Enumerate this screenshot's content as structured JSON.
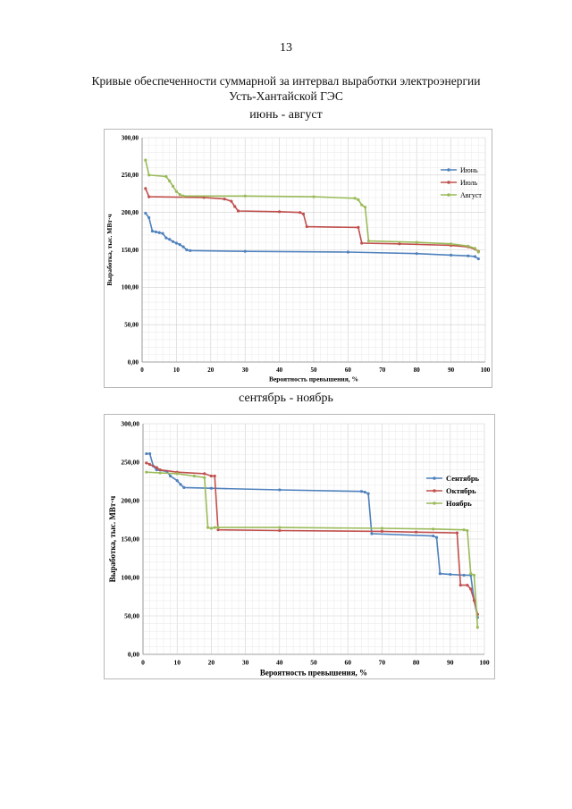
{
  "page_number": "13",
  "title_line1": "Кривые обеспеченности суммарной за интервал выработки электроэнергии",
  "title_line2": "Усть-Хантайской ГЭС",
  "section1": "июнь - август",
  "section2": "сентябрь - ноябрь",
  "chart_data": [
    {
      "type": "line",
      "xlabel": "Вероятность превышения, %",
      "ylabel": "Выработка, тыс. МВт·ч",
      "xlim": [
        0,
        100
      ],
      "ylim": [
        0,
        300
      ],
      "xticks": [
        0,
        10,
        20,
        30,
        40,
        50,
        60,
        70,
        80,
        90,
        100
      ],
      "yticks": [
        "0,00",
        "50,00",
        "100,00",
        "150,00",
        "200,00",
        "250,00",
        "300,00"
      ],
      "grid": true,
      "legend": "top-right",
      "series": [
        {
          "name": "Июнь",
          "color": "#4f81bd",
          "points": [
            [
              1,
              199
            ],
            [
              2,
              193
            ],
            [
              3,
              175
            ],
            [
              4,
              174
            ],
            [
              5,
              173
            ],
            [
              6,
              172
            ],
            [
              7,
              166
            ],
            [
              8,
              164
            ],
            [
              9,
              161
            ],
            [
              10,
              159
            ],
            [
              11,
              157
            ],
            [
              12,
              154
            ],
            [
              13,
              150
            ],
            [
              14,
              149
            ],
            [
              30,
              148
            ],
            [
              60,
              147
            ],
            [
              80,
              145
            ],
            [
              90,
              143
            ],
            [
              95,
              142
            ],
            [
              97,
              141
            ],
            [
              98,
              138
            ]
          ]
        },
        {
          "name": "Июль",
          "color": "#c0504d",
          "points": [
            [
              1,
              232
            ],
            [
              2,
              221
            ],
            [
              18,
              220
            ],
            [
              24,
              218
            ],
            [
              26,
              215
            ],
            [
              27,
              208
            ],
            [
              28,
              202
            ],
            [
              40,
              201
            ],
            [
              46,
              200
            ],
            [
              47,
              198
            ],
            [
              48,
              181
            ],
            [
              63,
              180
            ],
            [
              64,
              159
            ],
            [
              75,
              158
            ],
            [
              90,
              156
            ],
            [
              95,
              154
            ],
            [
              97,
              151
            ],
            [
              98,
              148
            ]
          ]
        },
        {
          "name": "Август",
          "color": "#9bbb59",
          "points": [
            [
              1,
              270
            ],
            [
              2,
              250
            ],
            [
              7,
              248
            ],
            [
              8,
              242
            ],
            [
              9,
              235
            ],
            [
              10,
              228
            ],
            [
              11,
              224
            ],
            [
              12,
              222
            ],
            [
              30,
              222
            ],
            [
              50,
              221
            ],
            [
              62,
              219
            ],
            [
              63,
              217
            ],
            [
              64,
              210
            ],
            [
              65,
              207
            ],
            [
              66,
              162
            ],
            [
              80,
              160
            ],
            [
              90,
              158
            ],
            [
              95,
              155
            ],
            [
              97,
              152
            ],
            [
              98,
              147
            ]
          ]
        }
      ]
    },
    {
      "type": "line",
      "xlabel": "Вероятность превышения, %",
      "ylabel": "Выработка, тыс. МВт·ч",
      "xlim": [
        0,
        100
      ],
      "ylim": [
        0,
        300
      ],
      "xticks": [
        0,
        10,
        20,
        30,
        40,
        50,
        60,
        70,
        80,
        90,
        100
      ],
      "yticks": [
        "0,00",
        "50,00",
        "100,00",
        "150,00",
        "200,00",
        "250,00",
        "300,00"
      ],
      "grid": true,
      "legend": "top-right",
      "series": [
        {
          "name": "Сентябрь",
          "color": "#4f81bd",
          "points": [
            [
              1,
              261
            ],
            [
              2,
              261
            ],
            [
              3,
              245
            ],
            [
              4,
              240
            ],
            [
              7,
              238
            ],
            [
              8,
              232
            ],
            [
              10,
              226
            ],
            [
              11,
              221
            ],
            [
              12,
              217
            ],
            [
              20,
              216
            ],
            [
              40,
              214
            ],
            [
              64,
              212
            ],
            [
              65,
              211
            ],
            [
              66,
              209
            ],
            [
              67,
              157
            ],
            [
              85,
              154
            ],
            [
              86,
              152
            ],
            [
              87,
              105
            ],
            [
              90,
              104
            ],
            [
              94,
              103
            ],
            [
              96,
              103
            ],
            [
              97,
              70
            ],
            [
              98,
              48
            ]
          ]
        },
        {
          "name": "Октябрь",
          "color": "#c0504d",
          "points": [
            [
              1,
              249
            ],
            [
              2,
              247
            ],
            [
              4,
              243
            ],
            [
              5,
              240
            ],
            [
              10,
              237
            ],
            [
              18,
              235
            ],
            [
              20,
              232
            ],
            [
              21,
              232
            ],
            [
              22,
              162
            ],
            [
              40,
              161
            ],
            [
              70,
              160
            ],
            [
              80,
              159
            ],
            [
              92,
              158
            ],
            [
              93,
              90
            ],
            [
              95,
              90
            ],
            [
              96,
              85
            ],
            [
              97,
              70
            ],
            [
              98,
              52
            ]
          ]
        },
        {
          "name": "Ноябрь",
          "color": "#9bbb59",
          "points": [
            [
              1,
              237
            ],
            [
              5,
              236
            ],
            [
              10,
              235
            ],
            [
              15,
              232
            ],
            [
              18,
              230
            ],
            [
              19,
              165
            ],
            [
              20,
              164
            ],
            [
              21,
              165
            ],
            [
              22,
              165
            ],
            [
              40,
              165
            ],
            [
              70,
              164
            ],
            [
              85,
              163
            ],
            [
              94,
              162
            ],
            [
              95,
              161
            ],
            [
              96,
              105
            ],
            [
              97,
              103
            ],
            [
              98,
              35
            ]
          ]
        }
      ]
    }
  ]
}
